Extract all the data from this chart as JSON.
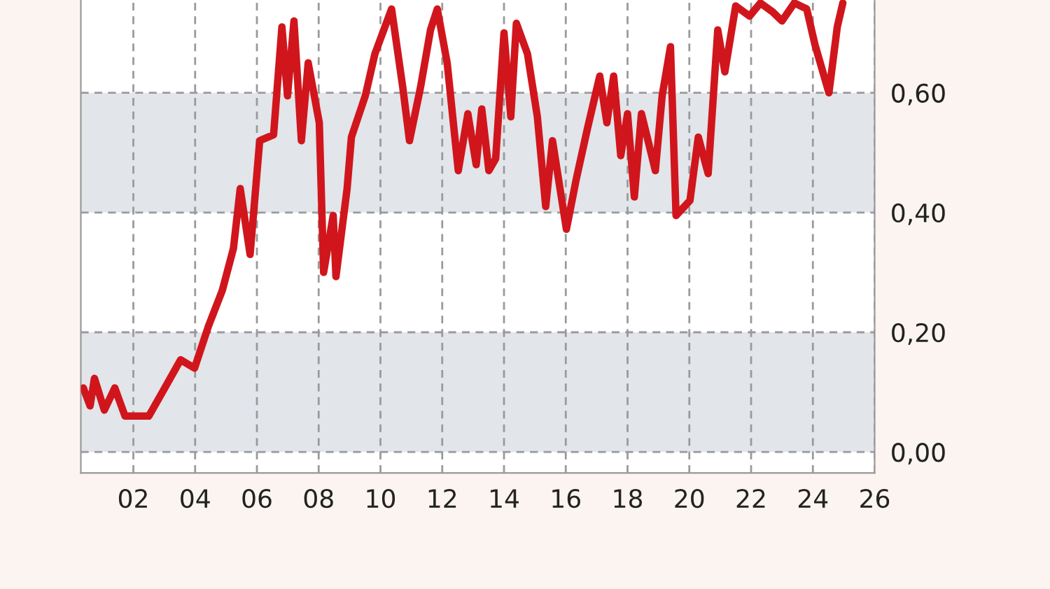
{
  "chart_data": {
    "type": "line",
    "x": [
      2000.38,
      2000.6,
      2000.74,
      2001.06,
      2001.4,
      2001.73,
      2002.5,
      2002.94,
      2003.53,
      2003.98,
      2004.43,
      2004.88,
      2005.24,
      2005.46,
      2005.78,
      2006.09,
      2006.54,
      2006.81,
      2006.99,
      2007.2,
      2007.44,
      2007.66,
      2008.02,
      2008.16,
      2008.47,
      2008.56,
      2008.92,
      2009.06,
      2009.51,
      2009.82,
      2010.36,
      2010.72,
      2010.94,
      2011.3,
      2011.62,
      2011.84,
      2012.16,
      2012.52,
      2012.83,
      2013.1,
      2013.28,
      2013.51,
      2013.73,
      2014.0,
      2014.22,
      2014.4,
      2014.76,
      2015.08,
      2015.35,
      2015.57,
      2016.02,
      2016.34,
      2016.7,
      2017.1,
      2017.33,
      2017.55,
      2017.78,
      2018.0,
      2018.22,
      2018.45,
      2018.9,
      2019.12,
      2019.39,
      2019.57,
      2020.02,
      2020.29,
      2020.61,
      2020.92,
      2021.15,
      2021.5,
      2021.95,
      2022.3,
      2022.7,
      2023.0,
      2023.4,
      2023.8,
      2024.07,
      2024.52,
      2024.79,
      2024.97
    ],
    "series": [
      {
        "color": "#d0161c",
        "values": [
          0.107,
          0.077,
          0.123,
          0.07,
          0.107,
          0.06,
          0.06,
          0.1,
          0.154,
          0.14,
          0.21,
          0.27,
          0.34,
          0.44,
          0.33,
          0.52,
          0.53,
          0.71,
          0.595,
          0.72,
          0.52,
          0.65,
          0.55,
          0.3,
          0.395,
          0.293,
          0.44,
          0.526,
          0.595,
          0.665,
          0.74,
          0.61,
          0.52,
          0.61,
          0.705,
          0.74,
          0.65,
          0.47,
          0.565,
          0.48,
          0.573,
          0.47,
          0.49,
          0.7,
          0.56,
          0.716,
          0.665,
          0.56,
          0.41,
          0.52,
          0.372,
          0.456,
          0.54,
          0.628,
          0.55,
          0.628,
          0.495,
          0.565,
          0.426,
          0.565,
          0.47,
          0.595,
          0.677,
          0.395,
          0.42,
          0.526,
          0.465,
          0.705,
          0.635,
          0.745,
          0.728,
          0.75,
          0.735,
          0.72,
          0.75,
          0.74,
          0.68,
          0.6,
          0.71,
          0.75
        ]
      }
    ],
    "xlim": [
      2000.3,
      2026
    ],
    "xticks": [
      {
        "value": 2002,
        "label": "02"
      },
      {
        "value": 2004,
        "label": "04"
      },
      {
        "value": 2006,
        "label": "06"
      },
      {
        "value": 2008,
        "label": "08"
      },
      {
        "value": 2010,
        "label": "10"
      },
      {
        "value": 2012,
        "label": "12"
      },
      {
        "value": 2014,
        "label": "14"
      },
      {
        "value": 2016,
        "label": "16"
      },
      {
        "value": 2018,
        "label": "18"
      },
      {
        "value": 2020,
        "label": "20"
      },
      {
        "value": 2022,
        "label": "22"
      },
      {
        "value": 2024,
        "label": "24"
      },
      {
        "value": 2026,
        "label": "26"
      }
    ],
    "ylim": [
      -0.035,
      0.755
    ],
    "yticks": [
      {
        "value": 0,
        "label": "0,00"
      },
      {
        "value": 0.2,
        "label": "0,20"
      },
      {
        "value": 0.4,
        "label": "0,40"
      },
      {
        "value": 0.6,
        "label": "0,60"
      }
    ],
    "bands": [
      {
        "axis": "y",
        "from": 0,
        "to": 0.2,
        "color": "#e2e5ea"
      },
      {
        "axis": "y",
        "from": 0.4,
        "to": 0.6,
        "color": "#e2e5ea"
      }
    ],
    "grid": true,
    "line_style": "solid",
    "marker": "none"
  }
}
